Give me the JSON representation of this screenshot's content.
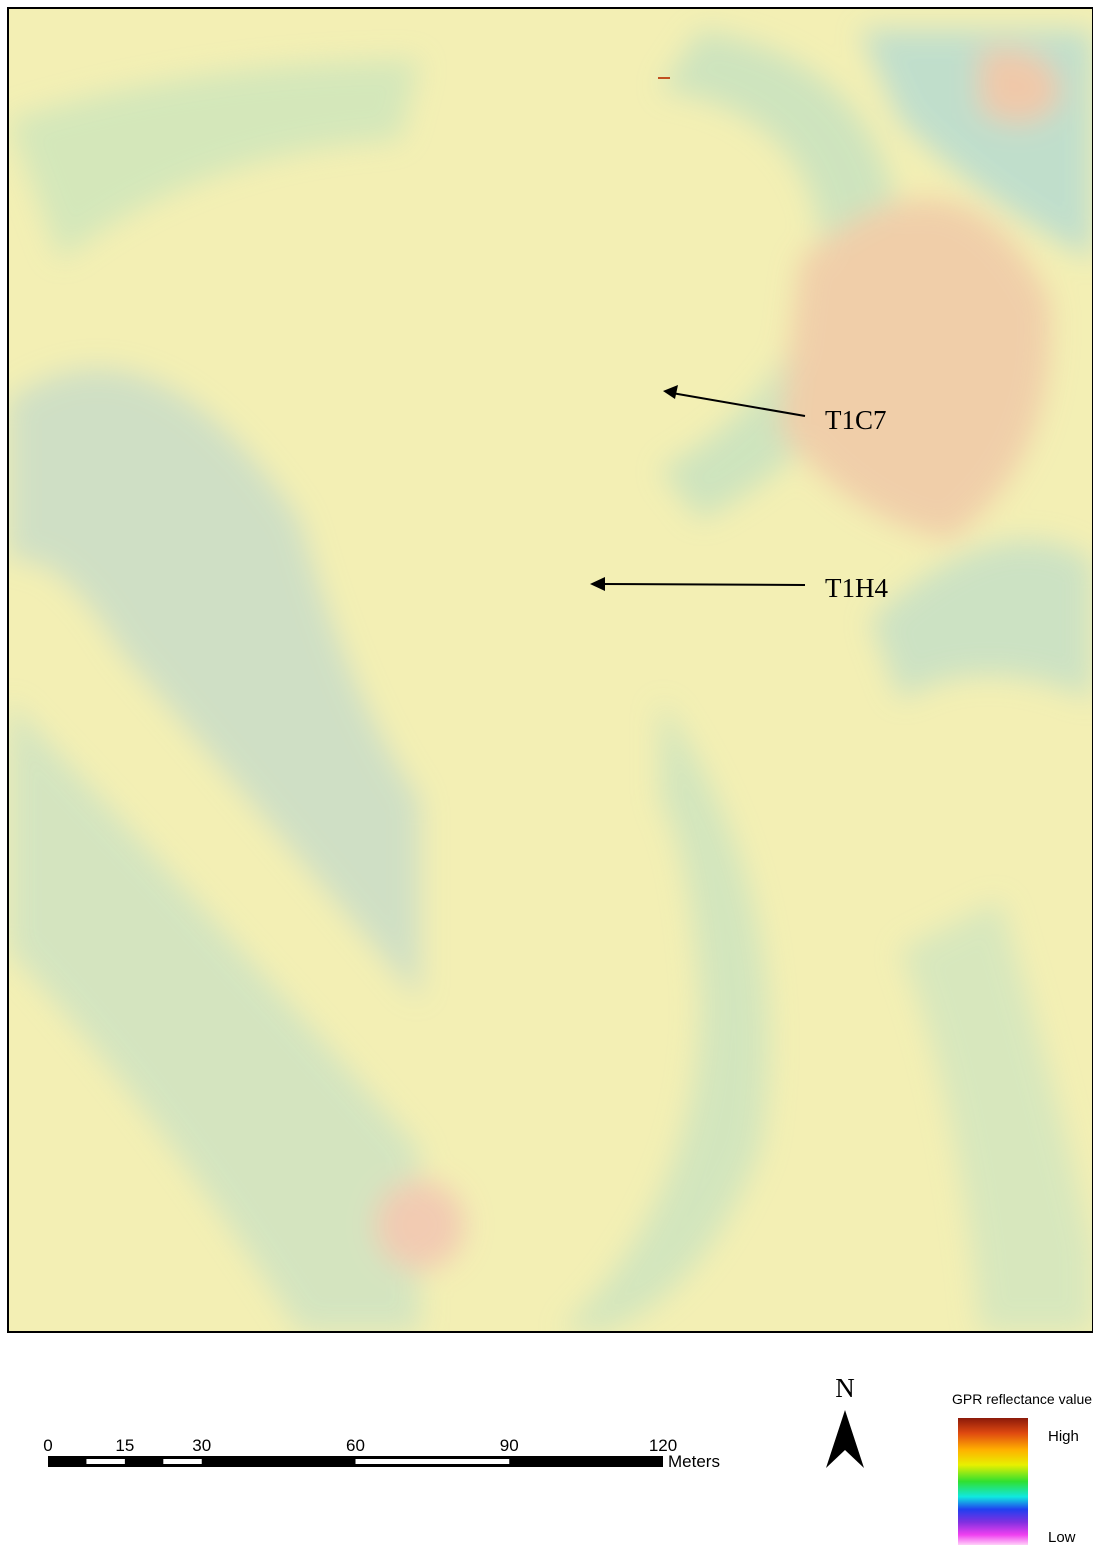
{
  "labels": [
    "T1C7",
    "T1H4"
  ],
  "scale_bar": {
    "ticks": [
      0,
      15,
      30,
      60,
      90,
      120
    ],
    "unit": "Meters"
  },
  "north_arrow": "N",
  "legend": {
    "title": "GPR reflectance value",
    "high": "High",
    "low": "Low"
  }
}
